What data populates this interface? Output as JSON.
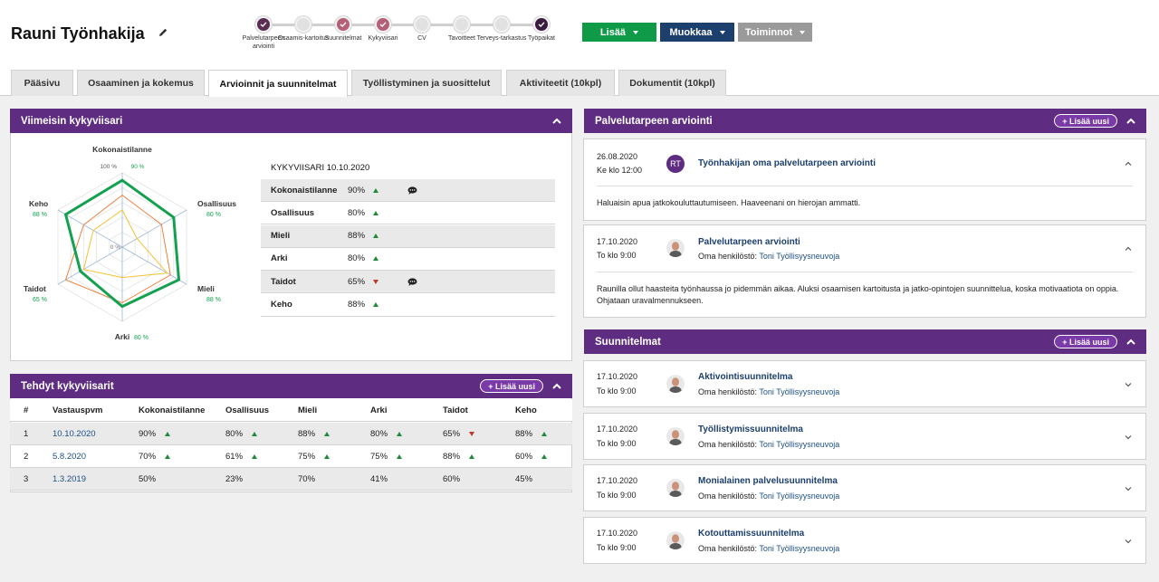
{
  "header": {
    "name": "Rauni Työnhakija",
    "steps": [
      {
        "label": "Palvelutarpeen arviointi",
        "state": "done"
      },
      {
        "label": "Osaamis-kartoitus",
        "state": "empty"
      },
      {
        "label": "Suunnitelmat",
        "state": "pink"
      },
      {
        "label": "Kykyviisari",
        "state": "pink"
      },
      {
        "label": "CV",
        "state": "empty"
      },
      {
        "label": "Tavoitteet",
        "state": "empty"
      },
      {
        "label": "Terveys-tarkastus",
        "state": "empty"
      },
      {
        "label": "Työpaikat",
        "state": "dark"
      }
    ],
    "buttons": {
      "add": "Lisää",
      "edit": "Muokkaa",
      "actions": "Toiminnot"
    }
  },
  "tabs": [
    "Pääsivu",
    "Osaaminen ja kokemus",
    "Arvioinnit ja suunnitelmat",
    "Työllistyminen ja suosittelut",
    "Aktiviteetit (10kpl)",
    "Dokumentit (10kpl)"
  ],
  "colors": {
    "purple": "#5e2c80",
    "green": "#0f9a48",
    "navy": "#1c3f6e",
    "gray": "#9a9a9a"
  },
  "latest": {
    "title": "Viimeisin kykyviisari",
    "radar": {
      "top_label": "Kokonaistilanne",
      "top_value": "90 %",
      "scale_max": "100 %",
      "scale_min": "0 %",
      "axes": [
        {
          "label": "Kokonaistilanne",
          "value": "90 %",
          "pct": 90
        },
        {
          "label": "Osallisuus",
          "value": "80 %",
          "pct": 80
        },
        {
          "label": "Mieli",
          "value": "88 %",
          "pct": 88
        },
        {
          "label": "Arki",
          "value": "80 %",
          "pct": 80
        },
        {
          "label": "Taidot",
          "value": "65 %",
          "pct": 65
        },
        {
          "label": "Keho",
          "value": "88 %",
          "pct": 88
        }
      ]
    },
    "table_title": "KYKYVIISARI 10.10.2020",
    "rows": [
      {
        "label": "Kokonaistilanne",
        "value": "90%",
        "trend": "up",
        "comment": true
      },
      {
        "label": "Osallisuus",
        "value": "80%",
        "trend": "up",
        "comment": false
      },
      {
        "label": "Mieli",
        "value": "88%",
        "trend": "up",
        "comment": false
      },
      {
        "label": "Arki",
        "value": "80%",
        "trend": "up",
        "comment": false
      },
      {
        "label": "Taidot",
        "value": "65%",
        "trend": "down",
        "comment": true
      },
      {
        "label": "Keho",
        "value": "88%",
        "trend": "up",
        "comment": false
      }
    ]
  },
  "done": {
    "title": "Tehdyt kykyviisarit",
    "add_new": "+ Lisää uusi",
    "columns": [
      "#",
      "Vastauspvm",
      "Kokonaistilanne",
      "Osallisuus",
      "Mieli",
      "Arki",
      "Taidot",
      "Keho"
    ],
    "rows": [
      {
        "n": "1",
        "date": "10.10.2020",
        "vals": [
          [
            "90%",
            "up"
          ],
          [
            "80%",
            "up"
          ],
          [
            "88%",
            "up"
          ],
          [
            "80%",
            "up"
          ],
          [
            "65%",
            "down"
          ],
          [
            "88%",
            "up"
          ]
        ]
      },
      {
        "n": "2",
        "date": "5.8.2020",
        "vals": [
          [
            "70%",
            "up"
          ],
          [
            "61%",
            "up"
          ],
          [
            "75%",
            "up"
          ],
          [
            "75%",
            "up"
          ],
          [
            "88%",
            "up"
          ],
          [
            "60%",
            "up"
          ]
        ]
      },
      {
        "n": "3",
        "date": "1.3.2019",
        "vals": [
          [
            "50%",
            ""
          ],
          [
            "23%",
            ""
          ],
          [
            "70%",
            ""
          ],
          [
            "41%",
            ""
          ],
          [
            "60%",
            ""
          ],
          [
            "45%",
            ""
          ]
        ]
      }
    ]
  },
  "assessment": {
    "title": "Palvelutarpeen arviointi",
    "add_new": "+ Lisää uusi",
    "cards": [
      {
        "date": "26.08.2020",
        "time": "Ke klo 12:00",
        "initials": "RT",
        "title": "Työnhakijan oma palvelutarpeen arviointi",
        "sub_prefix": "",
        "sub_person": "",
        "body": "Haluaisin apua jatkokouluttautumiseen. Haaveenani on hierojan ammatti."
      },
      {
        "date": "17.10.2020",
        "time": "To klo 9:00",
        "initials": "",
        "title": "Palvelutarpeen arviointi",
        "sub_prefix": "Oma henkilöstö: ",
        "sub_person": "Toni Työllisyysneuvoja",
        "body": "Raunilla ollut haasteita työnhaussa jo pidemmän aikaa. Aluksi osaamisen kartoitusta ja jatko-opintojen suunnittelua, koska motivaatiota on oppia. Ohjataan uravalmennukseen."
      }
    ]
  },
  "plans": {
    "title": "Suunnitelmat",
    "add_new": "+ Lisää uusi",
    "cards": [
      {
        "date": "17.10.2020",
        "time": "To klo 9:00",
        "title": "Aktivointisuunnitelma",
        "sub_prefix": "Oma henkilöstö: ",
        "sub_person": "Toni Työllisyysneuvoja"
      },
      {
        "date": "17.10.2020",
        "time": "To klo 9:00",
        "title": "Työllistymissuunnitelma",
        "sub_prefix": "Oma henkilöstö: ",
        "sub_person": "Toni Työllisyysneuvoja"
      },
      {
        "date": "17.10.2020",
        "time": "To klo 9:00",
        "title": "Monialainen palvelusuunnitelma",
        "sub_prefix": "Oma henkilöstö: ",
        "sub_person": "Toni Työllisyysneuvoja"
      },
      {
        "date": "17.10.2020",
        "time": "To klo 9:00",
        "title": "Kotouttamissuunnitelma",
        "sub_prefix": "Oma henkilöstö: ",
        "sub_person": "Toni Työllisyysneuvoja"
      }
    ]
  }
}
